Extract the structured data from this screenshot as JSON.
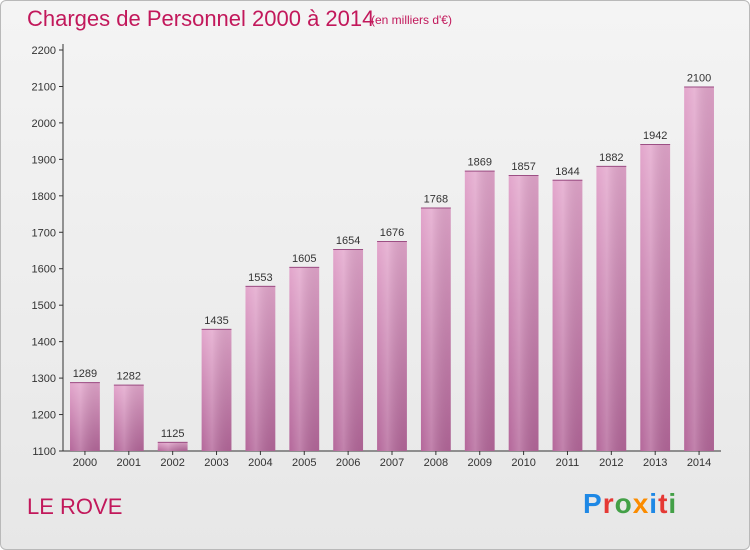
{
  "title": "Charges de Personnel 2000 à 2014",
  "subtitle": "(en milliers d'€)",
  "location": "LE ROVE",
  "logo": {
    "letters": [
      "P",
      "r",
      "o",
      "x",
      "i",
      "t",
      "i"
    ],
    "colors": [
      "#1e88e5",
      "#e53935",
      "#43a047",
      "#fb8c00",
      "#1e88e5",
      "#e53935",
      "#43a047"
    ]
  },
  "colors": {
    "bar": "#d585b6",
    "title": "#c2185b"
  },
  "chart_data": {
    "type": "bar",
    "categories": [
      "2000",
      "2001",
      "2002",
      "2003",
      "2004",
      "2005",
      "2006",
      "2007",
      "2008",
      "2009",
      "2010",
      "2011",
      "2012",
      "2013",
      "2014"
    ],
    "values": [
      1289,
      1282,
      1125,
      1435,
      1553,
      1605,
      1654,
      1676,
      1768,
      1869,
      1857,
      1844,
      1882,
      1942,
      2100
    ],
    "ylim": [
      1100,
      2200
    ],
    "yticks": [
      1100,
      1200,
      1300,
      1400,
      1500,
      1600,
      1700,
      1800,
      1900,
      2000,
      2100,
      2200
    ],
    "grid": false,
    "title": "Charges de Personnel 2000 à 2014",
    "xlabel": "",
    "ylabel": ""
  }
}
